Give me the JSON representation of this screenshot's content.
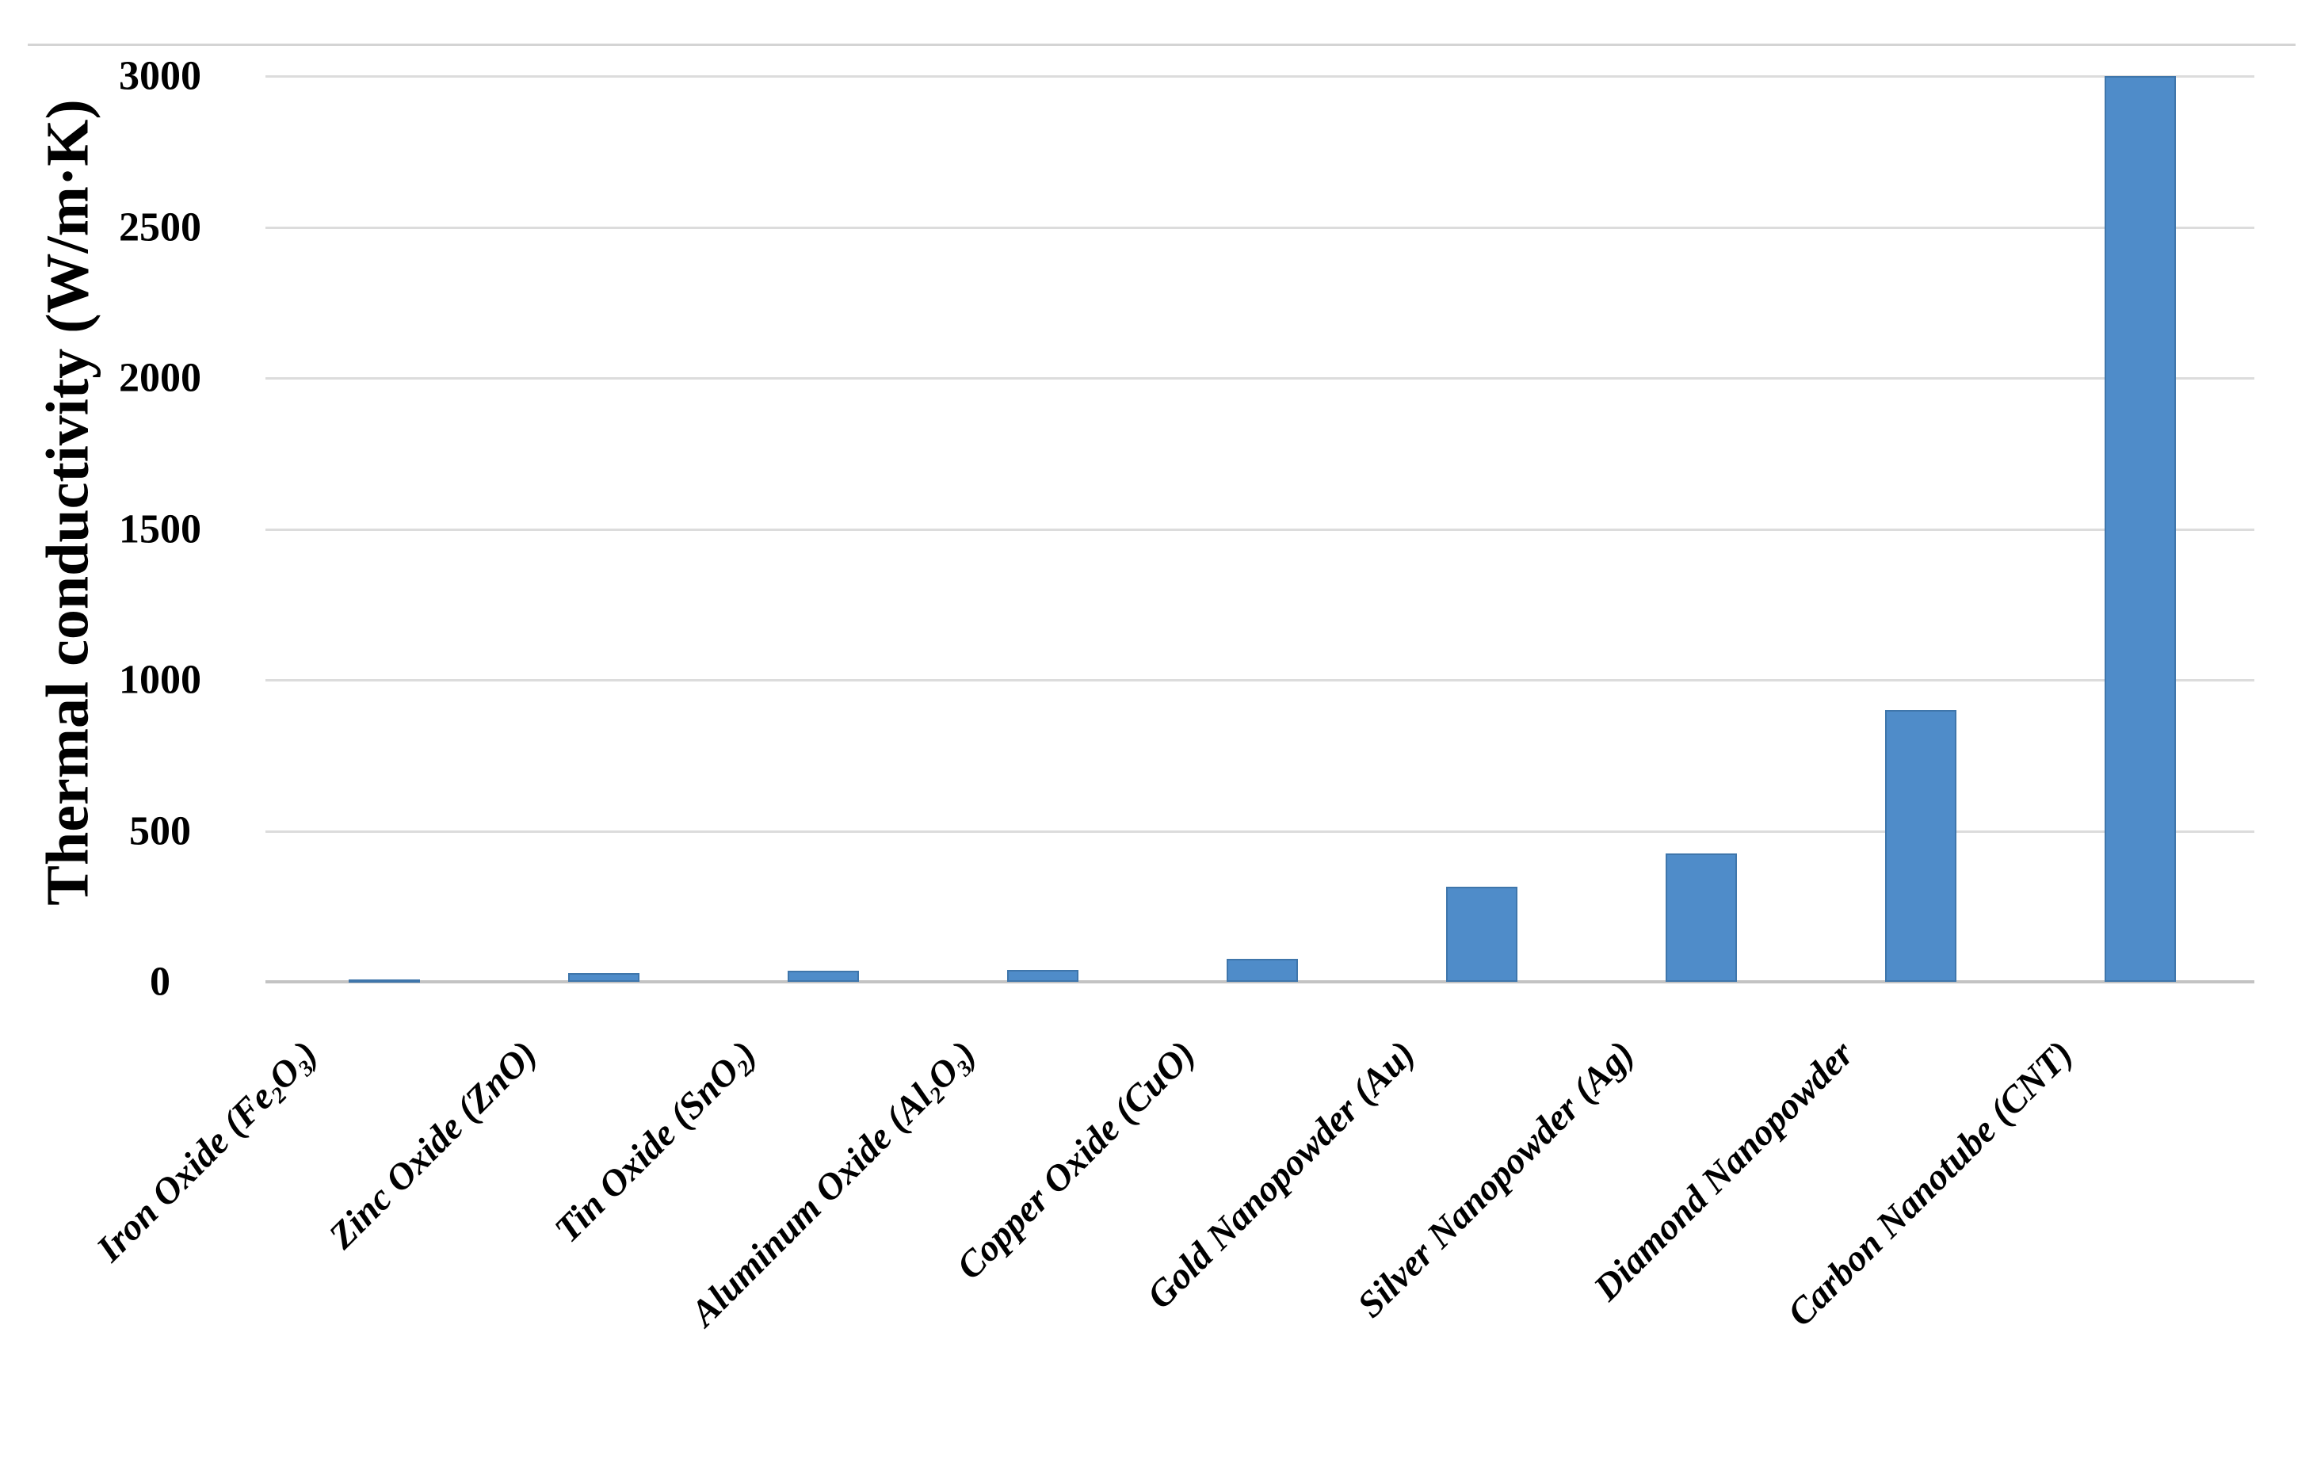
{
  "chart_data": {
    "type": "bar",
    "title": "",
    "ylabel": "Thermal conductivity (W/m·K)",
    "xlabel": "",
    "ylim": [
      0,
      3000
    ],
    "ytick_interval": 500,
    "yticks": [
      0,
      500,
      1000,
      1500,
      2000,
      2500,
      3000
    ],
    "grid": true,
    "legend_position": "none",
    "bar_color": "#4f8cc9",
    "bar_edge_color": "#3f76ab",
    "gridline_color": "#dcdcdc",
    "axis_line_color": "#c3c3c3",
    "top_border_color": "#d4d4d4",
    "categories": [
      {
        "name": "Iron Oxide (Fe2O3)",
        "segments": [
          {
            "t": "Iron Oxide (Fe"
          },
          {
            "t": "2",
            "sub": true
          },
          {
            "t": "O"
          },
          {
            "t": "3",
            "sub": true
          },
          {
            "t": ")"
          }
        ]
      },
      {
        "name": "Zinc Oxide (ZnO)",
        "segments": [
          {
            "t": "Zinc Oxide (ZnO)"
          }
        ]
      },
      {
        "name": "Tin Oxide (SnO2)",
        "segments": [
          {
            "t": "Tin Oxide (SnO"
          },
          {
            "t": "2",
            "sub": true
          },
          {
            "t": ")"
          }
        ]
      },
      {
        "name": "Aluminum Oxide (Al2O3)",
        "segments": [
          {
            "t": "Aluminum Oxide (Al"
          },
          {
            "t": "2",
            "sub": true
          },
          {
            "t": "O"
          },
          {
            "t": "3",
            "sub": true
          },
          {
            "t": ")"
          }
        ]
      },
      {
        "name": "Copper Oxide (CuO)",
        "segments": [
          {
            "t": "Copper Oxide (CuO)"
          }
        ]
      },
      {
        "name": "Gold Nanopowder (Au)",
        "segments": [
          {
            "t": "Gold Nanopowder (Au)"
          }
        ]
      },
      {
        "name": "Silver Nanopowder (Ag)",
        "segments": [
          {
            "t": "Silver Nanopowder (Ag)"
          }
        ]
      },
      {
        "name": "Diamond Nanopowder",
        "segments": [
          {
            "t": "Diamond Nanopowder"
          }
        ]
      },
      {
        "name": "Carbon Nanotube (CNT)",
        "segments": [
          {
            "t": "Carbon Nanotube (CNT)"
          }
        ]
      }
    ],
    "values": [
      7,
      29,
      36,
      40,
      76,
      315,
      425,
      900,
      3000
    ]
  }
}
